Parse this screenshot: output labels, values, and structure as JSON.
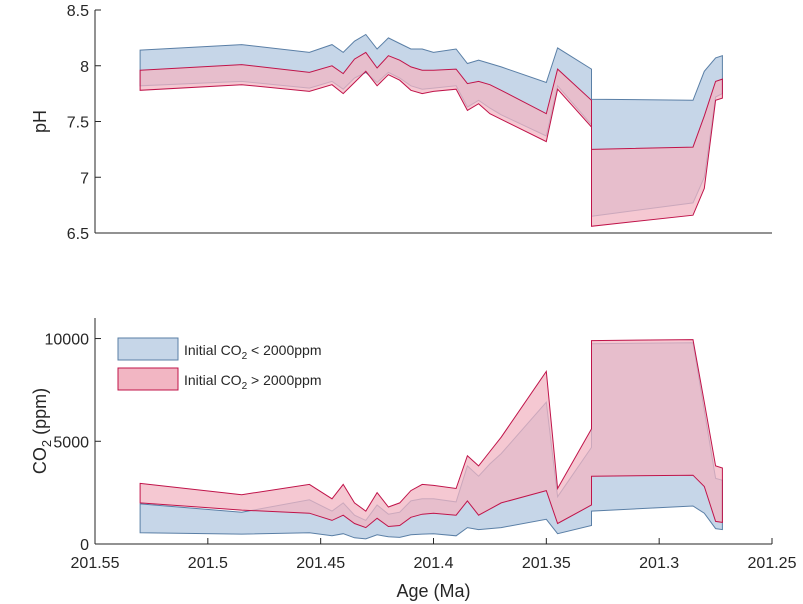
{
  "chart_data": [
    {
      "type": "area",
      "ylabel": "pH",
      "xlim": [
        201.55,
        201.25
      ],
      "ylim": [
        6.5,
        8.5
      ],
      "yticks": [
        6.5,
        7,
        7.5,
        8,
        8.5
      ],
      "ytick_labels": [
        "6.5",
        "7",
        "7.5",
        "8",
        "8.5"
      ],
      "x_reversed": true,
      "grid": false,
      "series": [
        {
          "name": "Initial CO2 < 2000ppm",
          "color": "#c6d6e8",
          "edge": "#5a7fa6",
          "x": [
            201.53,
            201.485,
            201.455,
            201.445,
            201.44,
            201.435,
            201.43,
            201.425,
            201.42,
            201.415,
            201.41,
            201.405,
            201.4,
            201.39,
            201.385,
            201.38,
            201.375,
            201.37,
            201.35,
            201.345,
            201.33,
            201.33,
            201.285,
            201.28,
            201.275,
            201.272
          ],
          "upper": [
            8.14,
            8.19,
            8.12,
            8.19,
            8.12,
            8.22,
            8.28,
            8.15,
            8.25,
            8.2,
            8.15,
            8.15,
            8.12,
            8.15,
            8.02,
            8.05,
            8.02,
            7.99,
            7.85,
            8.16,
            7.97,
            7.7,
            7.69,
            7.95,
            8.07,
            8.09
          ],
          "lower": [
            7.82,
            7.86,
            7.8,
            7.86,
            7.79,
            7.89,
            7.94,
            7.85,
            7.94,
            7.89,
            7.82,
            7.79,
            7.8,
            7.82,
            7.63,
            7.69,
            7.62,
            7.56,
            7.37,
            7.82,
            7.47,
            6.65,
            6.77,
            7.0,
            7.72,
            7.75
          ]
        },
        {
          "name": "Initial CO2 > 2000ppm",
          "color": "#f2b6c3",
          "edge": "#c0144a",
          "x": [
            201.53,
            201.485,
            201.455,
            201.445,
            201.44,
            201.435,
            201.43,
            201.425,
            201.42,
            201.415,
            201.41,
            201.405,
            201.4,
            201.39,
            201.385,
            201.38,
            201.375,
            201.37,
            201.35,
            201.345,
            201.33,
            201.33,
            201.285,
            201.28,
            201.275,
            201.272
          ],
          "upper": [
            7.96,
            8.01,
            7.94,
            8.0,
            7.93,
            8.06,
            8.12,
            7.98,
            8.09,
            8.05,
            7.99,
            7.96,
            7.96,
            7.97,
            7.84,
            7.86,
            7.83,
            7.78,
            7.57,
            7.97,
            7.69,
            7.25,
            7.27,
            7.55,
            7.86,
            7.88
          ],
          "lower": [
            7.78,
            7.83,
            7.77,
            7.83,
            7.75,
            7.85,
            7.95,
            7.82,
            7.92,
            7.87,
            7.78,
            7.75,
            7.77,
            7.79,
            7.6,
            7.66,
            7.57,
            7.52,
            7.32,
            7.79,
            7.45,
            6.56,
            6.66,
            6.9,
            7.69,
            7.71
          ]
        }
      ]
    },
    {
      "type": "area",
      "ylabel": "CO",
      "ylabel_sub": "2",
      "ylabel_tail": " (ppm)",
      "xlabel": "Age (Ma)",
      "xlim": [
        201.55,
        201.25
      ],
      "ylim": [
        0,
        11000
      ],
      "yticks": [
        0,
        5000,
        10000
      ],
      "ytick_labels": [
        "0",
        "5000",
        "10000"
      ],
      "xticks": [
        201.55,
        201.5,
        201.45,
        201.4,
        201.35,
        201.3,
        201.25
      ],
      "xtick_labels": [
        "201.55",
        "201.5",
        "201.45",
        "201.4",
        "201.35",
        "201.3",
        "201.25"
      ],
      "x_reversed": true,
      "grid": false,
      "legend_position": "top-left",
      "legend": [
        {
          "pre": "Initial CO",
          "sub": "2",
          "post": " < 2000ppm"
        },
        {
          "pre": "Initial CO",
          "sub": "2",
          "post": " > 2000ppm"
        }
      ],
      "series": [
        {
          "name": "Initial CO2 < 2000ppm",
          "color": "#c6d6e8",
          "edge": "#5a7fa6",
          "x": [
            201.53,
            201.485,
            201.455,
            201.445,
            201.44,
            201.435,
            201.43,
            201.425,
            201.42,
            201.415,
            201.41,
            201.405,
            201.4,
            201.39,
            201.385,
            201.38,
            201.375,
            201.37,
            201.35,
            201.345,
            201.33,
            201.33,
            201.285,
            201.28,
            201.275,
            201.272
          ],
          "upper": [
            1950,
            1550,
            2150,
            1600,
            2000,
            1400,
            1150,
            1900,
            1450,
            1550,
            2100,
            2200,
            2200,
            2050,
            3800,
            3300,
            3900,
            4400,
            6900,
            2300,
            4700,
            9750,
            9800,
            6500,
            3200,
            3100
          ],
          "lower": [
            550,
            480,
            550,
            400,
            500,
            300,
            250,
            450,
            350,
            320,
            450,
            480,
            500,
            400,
            800,
            700,
            750,
            800,
            1200,
            500,
            900,
            1600,
            1850,
            1500,
            750,
            700
          ]
        },
        {
          "name": "Initial CO2 > 2000ppm",
          "color": "#f2b6c3",
          "edge": "#c0144a",
          "x": [
            201.53,
            201.485,
            201.455,
            201.445,
            201.44,
            201.435,
            201.43,
            201.425,
            201.42,
            201.415,
            201.41,
            201.405,
            201.4,
            201.39,
            201.385,
            201.38,
            201.375,
            201.37,
            201.35,
            201.345,
            201.33,
            201.33,
            201.285,
            201.28,
            201.275,
            201.272
          ],
          "upper": [
            2950,
            2400,
            2900,
            2200,
            2900,
            2000,
            1600,
            2500,
            1800,
            2000,
            2600,
            2900,
            2850,
            2700,
            4300,
            3800,
            4500,
            5200,
            8400,
            2700,
            5600,
            9900,
            9950,
            6900,
            3800,
            3700
          ],
          "lower": [
            2000,
            1650,
            1500,
            1150,
            1400,
            1000,
            800,
            1250,
            850,
            900,
            1300,
            1450,
            1500,
            1400,
            2100,
            1400,
            1700,
            2000,
            2600,
            1000,
            1900,
            3300,
            3350,
            2800,
            1100,
            1050
          ]
        }
      ]
    }
  ]
}
